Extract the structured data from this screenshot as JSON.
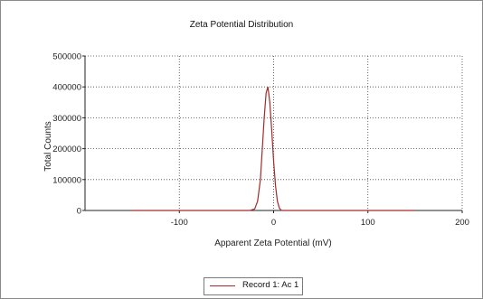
{
  "chart_data": {
    "type": "line",
    "title": "Zeta Potential Distribution",
    "xlabel": "Apparent Zeta Potential (mV)",
    "ylabel": "Total Counts",
    "xlim": [
      -200,
      200
    ],
    "ylim": [
      0,
      500000
    ],
    "x_ticks": [
      -100,
      0,
      100,
      200
    ],
    "x_tick_labels": [
      "-100",
      "0",
      "100",
      "200"
    ],
    "y_ticks": [
      0,
      100000,
      200000,
      300000,
      400000,
      500000
    ],
    "y_tick_labels": [
      "0",
      "100000",
      "200000",
      "300000",
      "400000",
      "500000"
    ],
    "grid": true,
    "legend_position": "bottom",
    "series": [
      {
        "name": "Record 1: Ac 1",
        "color": "#a52a2a",
        "x": [
          -150,
          -25,
          -20,
          -17,
          -14,
          -12,
          -10,
          -8,
          -6,
          -4,
          -2,
          0,
          2,
          4,
          6,
          8,
          10,
          150
        ],
        "y": [
          0,
          0,
          5000,
          30000,
          100000,
          200000,
          300000,
          380000,
          400000,
          350000,
          260000,
          160000,
          80000,
          30000,
          8000,
          1000,
          0,
          0
        ]
      }
    ]
  }
}
